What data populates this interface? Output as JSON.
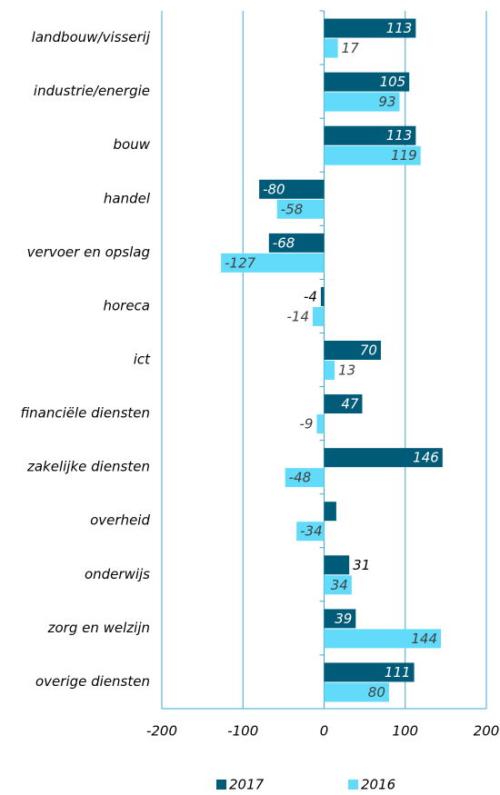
{
  "chart_data": {
    "type": "hbar",
    "categories": [
      "landbouw/visserij",
      "industrie/energie",
      "bouw",
      "handel",
      "vervoer en opslag",
      "horeca",
      "ict",
      "financiële diensten",
      "zakelijke diensten",
      "overheid",
      "onderwijs",
      "zorg en welzijn",
      "overige diensten"
    ],
    "series": [
      {
        "name": "2017",
        "color": "#005b78",
        "values": [
          113,
          105,
          113,
          -80,
          -68,
          -4,
          70,
          47,
          146,
          15,
          31,
          39,
          111
        ],
        "value_labels": [
          "113",
          "105",
          "113",
          "-80",
          "-68",
          "-4",
          "70",
          "47",
          "146",
          null,
          "31",
          "39",
          "111"
        ]
      },
      {
        "name": "2016",
        "color": "#62dbfa",
        "values": [
          17,
          93,
          119,
          -58,
          -127,
          -14,
          13,
          -9,
          -48,
          -34,
          34,
          144,
          80
        ]
      }
    ],
    "xlim": [
      -200,
      200
    ],
    "xticks": [
      -200,
      -100,
      0,
      100,
      200
    ],
    "grid": true,
    "legend": "bottom"
  }
}
